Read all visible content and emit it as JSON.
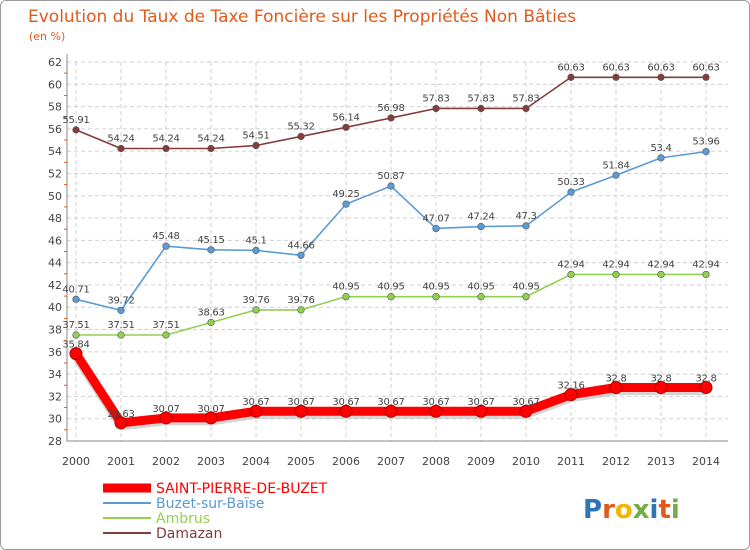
{
  "chart_data": {
    "type": "line",
    "title": "Evolution du Taux de Taxe Foncière sur les Propriétés Non Bâties",
    "subtitle": "(en %)",
    "x": [
      "2000",
      "2001",
      "2002",
      "2003",
      "2004",
      "2005",
      "2006",
      "2007",
      "2008",
      "2009",
      "2010",
      "2011",
      "2012",
      "2013",
      "2014"
    ],
    "ylim": [
      28,
      62
    ],
    "yticks": [
      28,
      30,
      32,
      34,
      36,
      38,
      40,
      42,
      44,
      46,
      48,
      50,
      52,
      54,
      56,
      58,
      60,
      62
    ],
    "series": [
      {
        "name": "SAINT-PIERRE-DE-BUZET",
        "color": "#ff0000",
        "values": [
          35.84,
          29.63,
          30.07,
          30.07,
          30.67,
          30.67,
          30.67,
          30.67,
          30.67,
          30.67,
          30.67,
          32.16,
          32.8,
          32.8,
          32.8
        ],
        "labels": [
          "35.84",
          "29.63",
          "30.07",
          "30.07",
          "30.67",
          "30.67",
          "30.67",
          "30.67",
          "30.67",
          "30.67",
          "30.67",
          "32.16",
          "32.8",
          "32.8",
          "32.8"
        ]
      },
      {
        "name": "Buzet-sur-Baïse",
        "color": "#5b9bd5",
        "values": [
          40.71,
          39.72,
          45.48,
          45.15,
          45.1,
          44.66,
          49.25,
          50.87,
          47.07,
          47.24,
          47.3,
          50.33,
          51.84,
          53.4,
          53.96
        ],
        "labels": [
          "40.71",
          "39.72",
          "45.48",
          "45.15",
          "45.1",
          "44.66",
          "49.25",
          "50.87",
          "47.07",
          "47.24",
          "47.3",
          "50.33",
          "51.84",
          "53.4",
          "53.96"
        ]
      },
      {
        "name": "Ambrus",
        "color": "#92d050",
        "values": [
          37.51,
          37.51,
          37.51,
          38.63,
          39.76,
          39.76,
          40.95,
          40.95,
          40.95,
          40.95,
          40.95,
          42.94,
          42.94,
          42.94,
          42.94
        ],
        "labels": [
          "37.51",
          "37.51",
          "37.51",
          "38.63",
          "39.76",
          "39.76",
          "40.95",
          "40.95",
          "40.95",
          "40.95",
          "40.95",
          "42.94",
          "42.94",
          "42.94",
          "42.94"
        ]
      },
      {
        "name": "Damazan",
        "color": "#843c3c",
        "values": [
          55.91,
          54.24,
          54.24,
          54.24,
          54.51,
          55.32,
          56.14,
          56.98,
          57.83,
          57.83,
          57.83,
          60.63,
          60.63,
          60.63,
          60.63
        ],
        "labels": [
          "55.91",
          "54.24",
          "54.24",
          "54.24",
          "54.51",
          "55.32",
          "56.14",
          "56.98",
          "57.83",
          "57.83",
          "57.83",
          "60.63",
          "60.63",
          "60.63",
          "60.63"
        ]
      }
    ],
    "legend_position": "bottom-left"
  },
  "brand": {
    "logo_text": "Proxiti"
  }
}
